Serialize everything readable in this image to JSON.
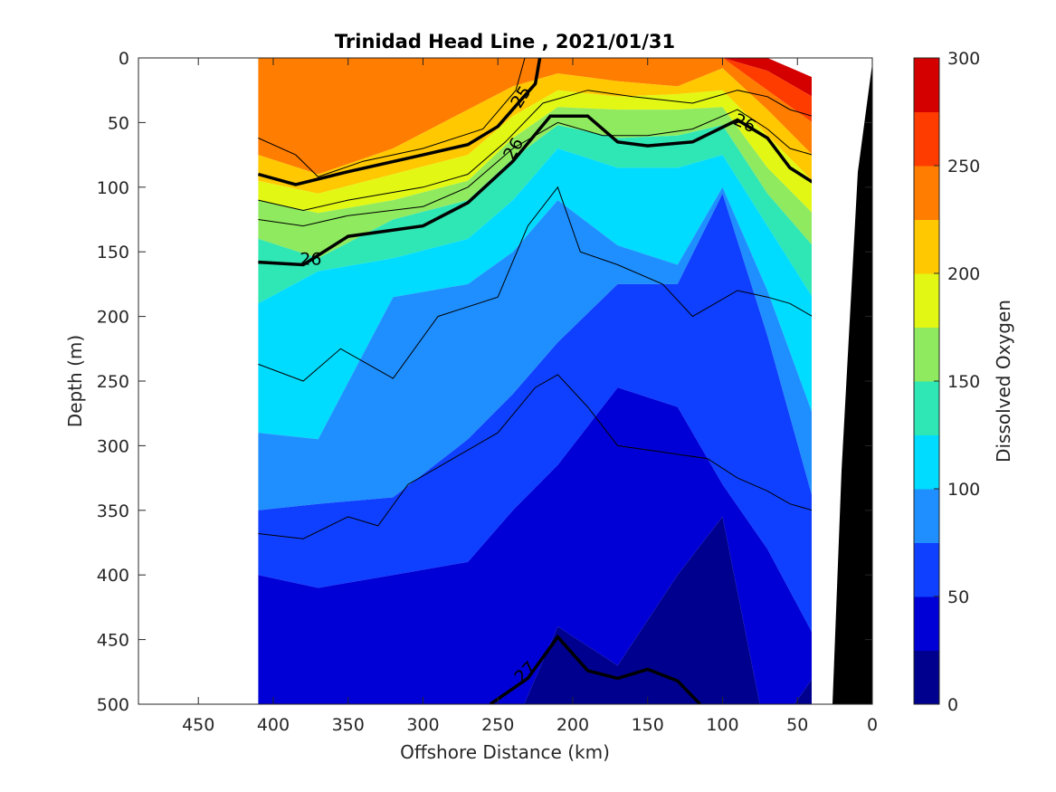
{
  "chart_data": {
    "type": "heatmap",
    "title": "Trinidad Head Line , 2021/01/31",
    "xlabel": "Offshore Distance (km)",
    "ylabel": "Depth (m)",
    "colorbar_label": "Dissolved Oxygen",
    "x_reversed": true,
    "y_reversed": true,
    "xlim": [
      490,
      0
    ],
    "ylim": [
      500,
      0
    ],
    "xticks": [
      450,
      400,
      350,
      300,
      250,
      200,
      150,
      100,
      50,
      0
    ],
    "yticks": [
      0,
      50,
      100,
      150,
      200,
      250,
      300,
      350,
      400,
      450,
      500
    ],
    "colorbar": {
      "range": [
        0,
        300
      ],
      "ticks": [
        0,
        50,
        100,
        150,
        200,
        250,
        300
      ],
      "levels": [
        0,
        25,
        50,
        75,
        100,
        125,
        150,
        175,
        200,
        225,
        250,
        275,
        300
      ],
      "colors": [
        "#00008f",
        "#0000d6",
        "#0f3fff",
        "#1f8fff",
        "#00dcff",
        "#2fe6b5",
        "#8fea5f",
        "#e2f714",
        "#ffc800",
        "#ff7d00",
        "#ff3c00",
        "#d40000"
      ]
    },
    "data_extent": {
      "x_min": 40,
      "x_max": 410,
      "depth_min": 0,
      "depth_max": 500
    },
    "isopycnals": [
      {
        "label": "25",
        "points": [
          [
            410,
            90
          ],
          [
            385,
            98
          ],
          [
            350,
            88
          ],
          [
            300,
            75
          ],
          [
            270,
            67
          ],
          [
            250,
            53
          ],
          [
            235,
            33
          ],
          [
            225,
            20
          ],
          [
            222,
            0
          ]
        ]
      },
      {
        "label": "26",
        "points": [
          [
            410,
            158
          ],
          [
            380,
            160
          ],
          [
            350,
            138
          ],
          [
            300,
            130
          ],
          [
            270,
            112
          ],
          [
            240,
            80
          ],
          [
            215,
            45
          ],
          [
            190,
            45
          ],
          [
            170,
            65
          ],
          [
            150,
            68
          ],
          [
            120,
            65
          ],
          [
            90,
            48
          ],
          [
            70,
            62
          ],
          [
            55,
            85
          ],
          [
            40,
            96
          ]
        ]
      },
      {
        "label": "27",
        "points": [
          [
            255,
            500
          ],
          [
            230,
            480
          ],
          [
            210,
            448
          ],
          [
            190,
            474
          ],
          [
            170,
            480
          ],
          [
            150,
            473
          ],
          [
            130,
            482
          ],
          [
            115,
            500
          ]
        ]
      }
    ],
    "thin_contours": [
      [
        [
          410,
          62
        ],
        [
          385,
          75
        ],
        [
          370,
          92
        ],
        [
          340,
          80
        ],
        [
          300,
          70
        ],
        [
          260,
          55
        ],
        [
          238,
          25
        ],
        [
          232,
          0
        ]
      ],
      [
        [
          410,
          110
        ],
        [
          380,
          118
        ],
        [
          350,
          110
        ],
        [
          300,
          100
        ],
        [
          270,
          90
        ],
        [
          245,
          65
        ],
        [
          220,
          35
        ],
        [
          190,
          25
        ],
        [
          160,
          30
        ],
        [
          120,
          35
        ],
        [
          90,
          25
        ],
        [
          70,
          30
        ],
        [
          55,
          40
        ],
        [
          40,
          45
        ]
      ],
      [
        [
          410,
          125
        ],
        [
          380,
          130
        ],
        [
          350,
          122
        ],
        [
          300,
          115
        ],
        [
          270,
          100
        ],
        [
          240,
          70
        ],
        [
          210,
          50
        ],
        [
          180,
          60
        ],
        [
          150,
          60
        ],
        [
          120,
          55
        ],
        [
          90,
          40
        ],
        [
          70,
          55
        ],
        [
          55,
          70
        ],
        [
          40,
          75
        ]
      ],
      [
        [
          410,
          237
        ],
        [
          380,
          250
        ],
        [
          355,
          225
        ],
        [
          320,
          248
        ],
        [
          290,
          200
        ],
        [
          250,
          185
        ],
        [
          230,
          130
        ],
        [
          210,
          100
        ],
        [
          195,
          150
        ],
        [
          170,
          160
        ],
        [
          140,
          175
        ],
        [
          120,
          200
        ],
        [
          90,
          180
        ],
        [
          70,
          185
        ],
        [
          55,
          190
        ],
        [
          40,
          200
        ]
      ],
      [
        [
          410,
          368
        ],
        [
          380,
          372
        ],
        [
          350,
          355
        ],
        [
          330,
          362
        ],
        [
          310,
          330
        ],
        [
          280,
          310
        ],
        [
          250,
          290
        ],
        [
          225,
          255
        ],
        [
          210,
          245
        ],
        [
          190,
          270
        ],
        [
          170,
          300
        ],
        [
          140,
          305
        ],
        [
          110,
          310
        ],
        [
          90,
          325
        ],
        [
          70,
          335
        ],
        [
          55,
          345
        ],
        [
          40,
          350
        ]
      ]
    ]
  }
}
